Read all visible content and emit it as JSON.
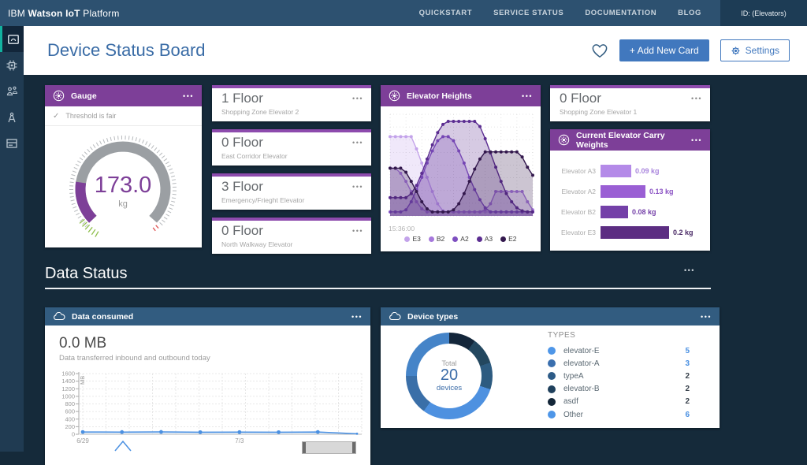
{
  "topbar": {
    "brand": {
      "prefix": "IBM",
      "bold": "Watson IoT",
      "suffix": "Platform"
    },
    "links": [
      "QUICKSTART",
      "SERVICE STATUS",
      "DOCUMENTATION",
      "BLOG"
    ],
    "org_id": "ID: (Elevators)"
  },
  "sidebar": {
    "icons": [
      "boards",
      "chip",
      "devices",
      "compass",
      "storage"
    ]
  },
  "page_header": {
    "title": "Device Status Board",
    "add_card": "+ Add New Card",
    "settings": "Settings"
  },
  "menu_dots": "•••",
  "gauge_card": {
    "title": "Gauge",
    "status": "Threshold is fair",
    "check_icon": "✓",
    "value": "173.0",
    "unit": "kg",
    "fraction": 0.2,
    "colors": {
      "arc": "#9b9fa3",
      "fill": "#7d3f98",
      "value": "#7d3f98",
      "good_ticks": "#8fbf4d",
      "bad_tick": "#e05252"
    }
  },
  "floor_cards": [
    {
      "value": "1 Floor",
      "label": "Shopping Zone Elevator 2"
    },
    {
      "value": "0 Floor",
      "label": "East Corridor Elevator"
    },
    {
      "value": "3 Floor",
      "label": "Emergency/Frieght Elevator"
    },
    {
      "value": "0 Floor",
      "label": "North Walkway Elevator"
    },
    {
      "value": "0 Floor",
      "label": "Shopping Zone Elevator 1"
    }
  ],
  "heights_card": {
    "title": "Elevator Heights",
    "x_label": "15:36:00",
    "chart_data": {
      "type": "area",
      "ymax": 10,
      "series": [
        {
          "name": "E3",
          "color": "#c3a3ea",
          "values": [
            7.8,
            7.8,
            7.8,
            7.8,
            7.8,
            6.6,
            5.2,
            3.8,
            2.4,
            1.2,
            0.5,
            0.4,
            0.4,
            0.4,
            0.4,
            0.4,
            0.4,
            0.4,
            0.4,
            0.4,
            0.4,
            0.4,
            0.4,
            0.4,
            0.4,
            0.4,
            0.4,
            0.4
          ]
        },
        {
          "name": "B2",
          "color": "#a678dc",
          "values": [
            4.7,
            4.7,
            4.2,
            3.4,
            2.4,
            1.4,
            0.7,
            0.4,
            0.4,
            0.4,
            0.4,
            0.4,
            0.4,
            0.4,
            0.4,
            0.4,
            0.4,
            0.4,
            0.6,
            1.2,
            2.4,
            2.4,
            2.4,
            2.4,
            2.4,
            2.4,
            1.4,
            0.6
          ]
        },
        {
          "name": "A2",
          "color": "#7e4fc0",
          "values": [
            0.4,
            0.4,
            0.4,
            0.6,
            1.4,
            2.6,
            3.8,
            5.2,
            6.4,
            7.4,
            7.8,
            7.8,
            7.4,
            6.4,
            5.2,
            3.8,
            2.6,
            1.6,
            0.8,
            0.4,
            0.4,
            0.4,
            0.4,
            0.4,
            0.4,
            0.4,
            0.4,
            0.4
          ]
        },
        {
          "name": "A3",
          "color": "#5b2d91",
          "values": [
            1.8,
            1.8,
            1.8,
            1.8,
            2.2,
            3.0,
            4.2,
            5.6,
            7.0,
            8.2,
            9.0,
            9.3,
            9.3,
            9.3,
            9.3,
            9.3,
            9.3,
            8.8,
            7.6,
            6.2,
            4.8,
            3.4,
            2.2,
            1.4,
            0.8,
            0.5,
            0.4,
            0.4
          ]
        },
        {
          "name": "E2",
          "color": "#33184d",
          "values": [
            4.7,
            4.7,
            4.7,
            4.3,
            3.4,
            2.4,
            1.4,
            0.7,
            0.4,
            0.4,
            0.4,
            0.4,
            0.6,
            1.2,
            2.2,
            3.4,
            4.6,
            5.6,
            6.3,
            6.3,
            6.3,
            6.3,
            6.3,
            6.3,
            6.3,
            5.8,
            4.8,
            4.0
          ]
        }
      ]
    }
  },
  "weights_card": {
    "title": "Current Elevator Carry Weights",
    "chart_data": {
      "type": "bar",
      "bars": [
        {
          "label": "Elevator A3",
          "value_text": "0.09 kg",
          "value": 0.09,
          "color": "#b48ae8",
          "text_color": "#a985dd"
        },
        {
          "label": "Elevator A2",
          "value_text": "0.13 kg",
          "value": 0.13,
          "color": "#9a5fd4",
          "text_color": "#8b53c4"
        },
        {
          "label": "Elevator B2",
          "value_text": "0.08 kg",
          "value": 0.08,
          "color": "#7440a8",
          "text_color": "#7440a8"
        },
        {
          "label": "Elevator E3",
          "value_text": "0.2 kg",
          "value": 0.2,
          "color": "#5c2d82",
          "text_color": "#4a2a66"
        }
      ]
    }
  },
  "section": {
    "title": "Data Status"
  },
  "consumed_card": {
    "title": "Data consumed",
    "big_value": "0.0 MB",
    "subtitle": "Data transferred inbound and outbound today",
    "chart_data": {
      "type": "line",
      "ylabel": "MB",
      "ymax": 1600,
      "yticks": [
        1600,
        1400,
        1200,
        1000,
        800,
        600,
        400,
        200,
        0
      ],
      "x_ticks": [
        {
          "index": 0,
          "label": "6/29"
        },
        {
          "index": 4,
          "label": "7/3"
        }
      ],
      "values": [
        60,
        58,
        62,
        55,
        57,
        55,
        60,
        14
      ],
      "line_color": "#4a90e2"
    }
  },
  "types_card": {
    "title": "Device types",
    "center": {
      "label_top": "Total",
      "value": "20",
      "label_bottom": "devices"
    },
    "legend_title": "TYPES",
    "chart_data": {
      "type": "donut",
      "total": 20,
      "segments": [
        {
          "name": "asdf",
          "value": 2,
          "color": "#13263a"
        },
        {
          "name": "elevator-B",
          "value": 2,
          "color": "#23475f"
        },
        {
          "name": "typeA",
          "value": 2,
          "color": "#2d5b80"
        },
        {
          "name": "Other",
          "value": 6,
          "color": "#4e91e0"
        },
        {
          "name": "elevator-A",
          "value": 3,
          "color": "#3a6fa8"
        },
        {
          "name": "elevator-E",
          "value": 5,
          "color": "#4584c8"
        }
      ]
    },
    "legend": [
      {
        "label": "elevator-E",
        "count": "5",
        "dot": "#4e96e8",
        "count_color": "#4a90e2"
      },
      {
        "label": "elevator-A",
        "count": "3",
        "dot": "#3a6fae",
        "count_color": "#4a90e2"
      },
      {
        "label": "typeA",
        "count": "2",
        "dot": "#2d5b87",
        "count_color": "#39424c"
      },
      {
        "label": "elevator-B",
        "count": "2",
        "dot": "#1f405c",
        "count_color": "#39424c"
      },
      {
        "label": "asdf",
        "count": "2",
        "dot": "#132638",
        "count_color": "#39424c"
      },
      {
        "label": "Other",
        "count": "6",
        "dot": "#4e96e8",
        "count_color": "#4a90e2"
      }
    ]
  }
}
